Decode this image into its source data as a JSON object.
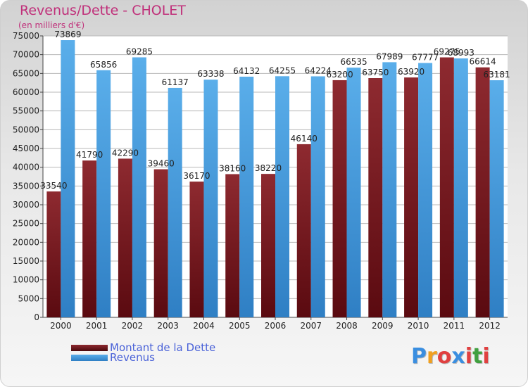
{
  "colors": {
    "title": "#c0307a",
    "debt": "#7a1a22",
    "revenue": "#4a9fe0",
    "legend_text": "#4a62d8"
  },
  "chart_data": {
    "type": "bar",
    "title": "Revenus/Dette - CHOLET",
    "subtitle": "(en milliers d'€)",
    "categories": [
      "2000",
      "2001",
      "2002",
      "2003",
      "2004",
      "2005",
      "2006",
      "2007",
      "2008",
      "2009",
      "2010",
      "2011",
      "2012"
    ],
    "series": [
      {
        "name": "Montant de la Dette",
        "values": [
          33540,
          41790,
          42290,
          39460,
          36170,
          38160,
          38220,
          46140,
          63200,
          63750,
          63920,
          69275,
          66614
        ],
        "labels": [
          "33540",
          "41790",
          "42290",
          "39460",
          "36170",
          "38160",
          "38220",
          "46140",
          "63200",
          "63750",
          "63920",
          "69275",
          "66614"
        ]
      },
      {
        "name": "Revenus",
        "values": [
          73869,
          65856,
          69285,
          61137,
          63338,
          64132,
          64255,
          64224,
          66535,
          67989,
          67777,
          68993,
          63181
        ],
        "labels": [
          "73869",
          "65856",
          "69285",
          "61137",
          "63338",
          "64132",
          "64255",
          "64224",
          "66535",
          "67989",
          "67777",
          "68993",
          "63181"
        ]
      }
    ],
    "ylim": [
      0,
      75000
    ],
    "yticks": [
      0,
      5000,
      10000,
      15000,
      20000,
      25000,
      30000,
      35000,
      40000,
      45000,
      50000,
      55000,
      60000,
      65000,
      70000,
      75000
    ],
    "grid": true,
    "legend_position": "bottom-left"
  },
  "legend": {
    "debt_label": "Montant de la Dette",
    "revenue_label": "Revenus"
  },
  "logo": {
    "letters": [
      "P",
      "r",
      "o",
      "x",
      "i",
      "t",
      "i"
    ],
    "letter_colors": [
      "#3a8ee0",
      "#f0a020",
      "#e04040",
      "#3a8ee0",
      "#e04040",
      "#40a040",
      "#e04040"
    ]
  }
}
